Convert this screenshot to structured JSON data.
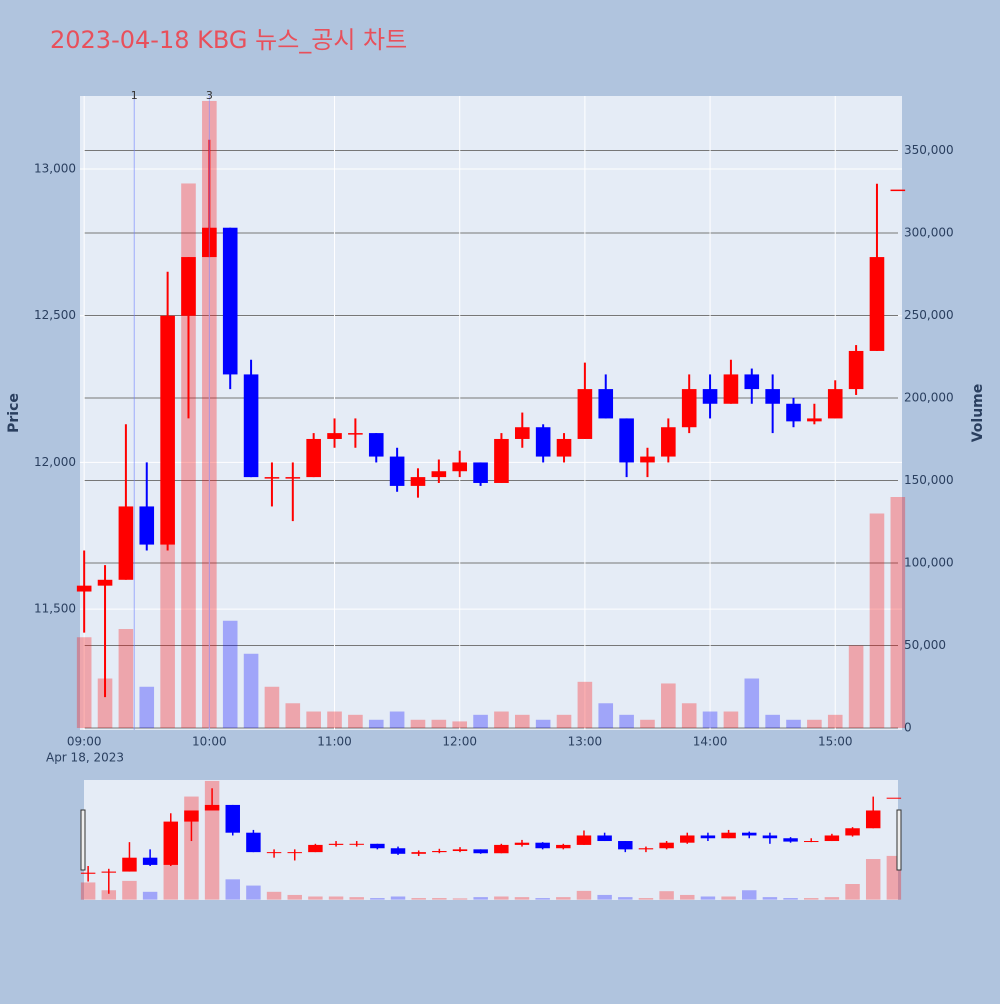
{
  "chart_data": {
    "type": "candlestick",
    "title": "2023-04-18 KBG 뉴스_공시 차트",
    "ylabel": "Price",
    "y2label": "Volume",
    "increasing_color": "#ff0000",
    "decreasing_color": "#0000ff",
    "x": [
      "2023-04-18 09:00",
      "2023-04-18 09:10",
      "2023-04-18 09:20",
      "2023-04-18 09:30",
      "2023-04-18 09:40",
      "2023-04-18 09:50",
      "2023-04-18 10:00",
      "2023-04-18 10:10",
      "2023-04-18 10:20",
      "2023-04-18 10:30",
      "2023-04-18 10:40",
      "2023-04-18 10:50",
      "2023-04-18 11:00",
      "2023-04-18 11:10",
      "2023-04-18 11:20",
      "2023-04-18 11:30",
      "2023-04-18 11:40",
      "2023-04-18 11:50",
      "2023-04-18 12:00",
      "2023-04-18 12:10",
      "2023-04-18 12:20",
      "2023-04-18 12:30",
      "2023-04-18 12:40",
      "2023-04-18 12:50",
      "2023-04-18 13:00",
      "2023-04-18 13:10",
      "2023-04-18 13:20",
      "2023-04-18 13:30",
      "2023-04-18 13:40",
      "2023-04-18 13:50",
      "2023-04-18 14:00",
      "2023-04-18 14:10",
      "2023-04-18 14:20",
      "2023-04-18 14:30",
      "2023-04-18 14:40",
      "2023-04-18 14:50",
      "2023-04-18 15:00",
      "2023-04-18 15:10",
      "2023-04-18 15:20",
      "2023-04-18 15:30"
    ],
    "open": [
      11560,
      11580,
      11600,
      11850,
      11720,
      12500,
      12700,
      12800,
      12300,
      11950,
      11950,
      11950,
      12080,
      12100,
      12100,
      12020,
      11920,
      11950,
      11970,
      12000,
      11930,
      12080,
      12120,
      12020,
      12080,
      12250,
      12150,
      12000,
      12020,
      12120,
      12250,
      12200,
      12300,
      12250,
      12200,
      12140,
      12150,
      12250,
      12380,
      12930
    ],
    "high": [
      11700,
      11650,
      12130,
      12000,
      12650,
      12700,
      13100,
      12800,
      12350,
      12000,
      12000,
      12100,
      12150,
      12150,
      12100,
      12050,
      11980,
      12010,
      12040,
      12000,
      12100,
      12170,
      12130,
      12100,
      12340,
      12300,
      12150,
      12050,
      12150,
      12300,
      12300,
      12350,
      12320,
      12300,
      12220,
      12200,
      12280,
      12400,
      12950,
      12930
    ],
    "low": [
      11420,
      11200,
      11600,
      11700,
      11700,
      12150,
      12700,
      12250,
      11950,
      11850,
      11800,
      11950,
      12050,
      12050,
      12000,
      11900,
      11880,
      11930,
      11950,
      11920,
      11930,
      12050,
      12000,
      12000,
      12080,
      12150,
      11950,
      11950,
      12000,
      12100,
      12150,
      12200,
      12200,
      12100,
      12120,
      12130,
      12150,
      12230,
      12380,
      12930
    ],
    "close": [
      11580,
      11600,
      11850,
      11720,
      12500,
      12700,
      12800,
      12300,
      11950,
      11950,
      11950,
      12080,
      12100,
      12100,
      12020,
      11920,
      11950,
      11970,
      12000,
      11930,
      12080,
      12120,
      12020,
      12080,
      12250,
      12150,
      12000,
      12020,
      12120,
      12250,
      12200,
      12300,
      12250,
      12200,
      12140,
      12150,
      12250,
      12380,
      12700,
      12930
    ],
    "volume": [
      55000,
      30000,
      60000,
      25000,
      120000,
      330000,
      380000,
      65000,
      45000,
      25000,
      15000,
      10000,
      10000,
      8000,
      5000,
      10000,
      5000,
      5000,
      4000,
      8000,
      10000,
      8000,
      5000,
      8000,
      28000,
      15000,
      8000,
      5000,
      27000,
      15000,
      10000,
      10000,
      30000,
      8000,
      5000,
      5000,
      8000,
      50000,
      130000,
      140000
    ],
    "xlim": [
      "2023-04-18 08:58",
      "2023-04-18 15:32"
    ],
    "xticks": [
      {
        "value": "2023-04-18 09:00",
        "label": "09:00"
      },
      {
        "value": "2023-04-18 10:00",
        "label": "10:00"
      },
      {
        "value": "2023-04-18 11:00",
        "label": "11:00"
      },
      {
        "value": "2023-04-18 12:00",
        "label": "12:00"
      },
      {
        "value": "2023-04-18 13:00",
        "label": "13:00"
      },
      {
        "value": "2023-04-18 14:00",
        "label": "14:00"
      },
      {
        "value": "2023-04-18 15:00",
        "label": "15:00"
      }
    ],
    "xtick_date": "Apr 18, 2023",
    "ylim": [
      11088,
      13249
    ],
    "yticks": [
      {
        "value": 11500,
        "label": "11,500"
      },
      {
        "value": 12000,
        "label": "12,000"
      },
      {
        "value": 12500,
        "label": "12,500"
      },
      {
        "value": 13000,
        "label": "13,000"
      }
    ],
    "y2lim": [
      -1200,
      383000
    ],
    "y2ticks": [
      0,
      {
        "value": 50000,
        "label": "50,000"
      },
      {
        "value": 100000,
        "label": "100,000"
      },
      {
        "value": 150000,
        "label": "150,000"
      },
      {
        "value": 200000,
        "label": "200,000"
      },
      {
        "value": 250000,
        "label": "250,000"
      },
      {
        "value": 300000,
        "label": "300,000"
      },
      {
        "value": 350000,
        "label": "350,000"
      }
    ],
    "annotations": [
      {
        "x": "2023-04-18 09:24",
        "label": "1"
      },
      {
        "x": "2023-04-18 10:00",
        "label": "3"
      }
    ]
  }
}
